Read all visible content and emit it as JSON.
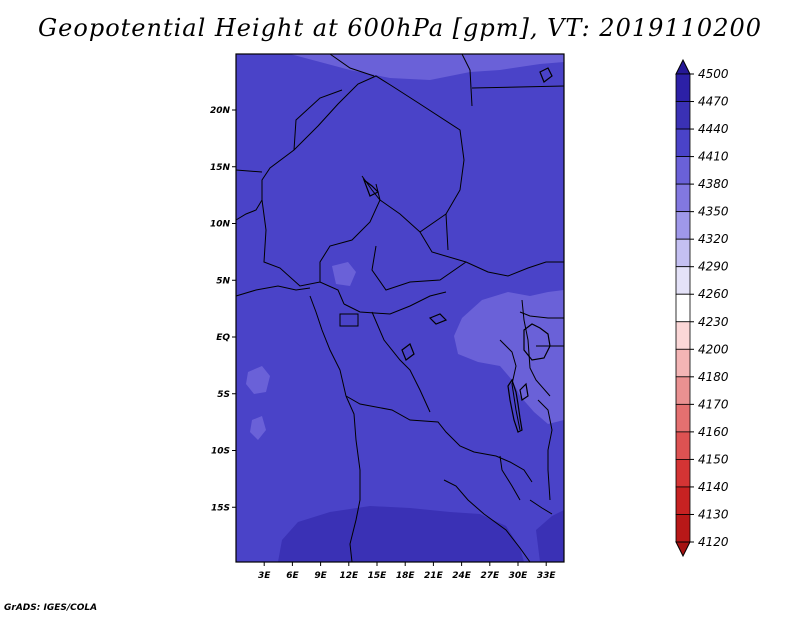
{
  "title": "Geopotential Height at 600hPa [gpm], VT: 2019110200",
  "credit": "GrADS: IGES/COLA",
  "map": {
    "lon_range": [
      0,
      34
    ],
    "lat_range": [
      -20,
      24
    ],
    "x_ticks": [
      {
        "lon": 3,
        "label": "3E"
      },
      {
        "lon": 6,
        "label": "6E"
      },
      {
        "lon": 9,
        "label": "9E"
      },
      {
        "lon": 12,
        "label": "12E"
      },
      {
        "lon": 15,
        "label": "15E"
      },
      {
        "lon": 18,
        "label": "18E"
      },
      {
        "lon": 21,
        "label": "21E"
      },
      {
        "lon": 24,
        "label": "24E"
      },
      {
        "lon": 27,
        "label": "27E"
      },
      {
        "lon": 30,
        "label": "30E"
      },
      {
        "lon": 33,
        "label": "33E"
      }
    ],
    "y_ticks": [
      {
        "lat": 20,
        "label": "20N"
      },
      {
        "lat": 15,
        "label": "15N"
      },
      {
        "lat": 10,
        "label": "10N"
      },
      {
        "lat": 5,
        "label": "5N"
      },
      {
        "lat": 0,
        "label": "EQ"
      },
      {
        "lat": -5,
        "label": "5S"
      },
      {
        "lat": -10,
        "label": "10S"
      },
      {
        "lat": -15,
        "label": "15S"
      }
    ],
    "colors": {
      "base_4410": "#4a43c8",
      "band_4380": "#6a61d8",
      "band_4440": "#3a31b5",
      "background": "#ffffff",
      "outline": "#000000"
    }
  },
  "colorbar": {
    "levels": [
      "4500",
      "4470",
      "4440",
      "4410",
      "4380",
      "4350",
      "4320",
      "4290",
      "4260",
      "4230",
      "4200",
      "4180",
      "4170",
      "4160",
      "4150",
      "4140",
      "4130",
      "4120"
    ],
    "colors": [
      "#251896",
      "#2c20a6",
      "#3a31b5",
      "#4a43c8",
      "#6a61d8",
      "#8278e0",
      "#9f98ea",
      "#c4c0f2",
      "#e4e2f8",
      "#ffffff",
      "#fbd7d7",
      "#f3b5b5",
      "#ea9191",
      "#e47070",
      "#dd5252",
      "#d43434",
      "#c72222",
      "#b81818",
      "#a51212"
    ]
  }
}
